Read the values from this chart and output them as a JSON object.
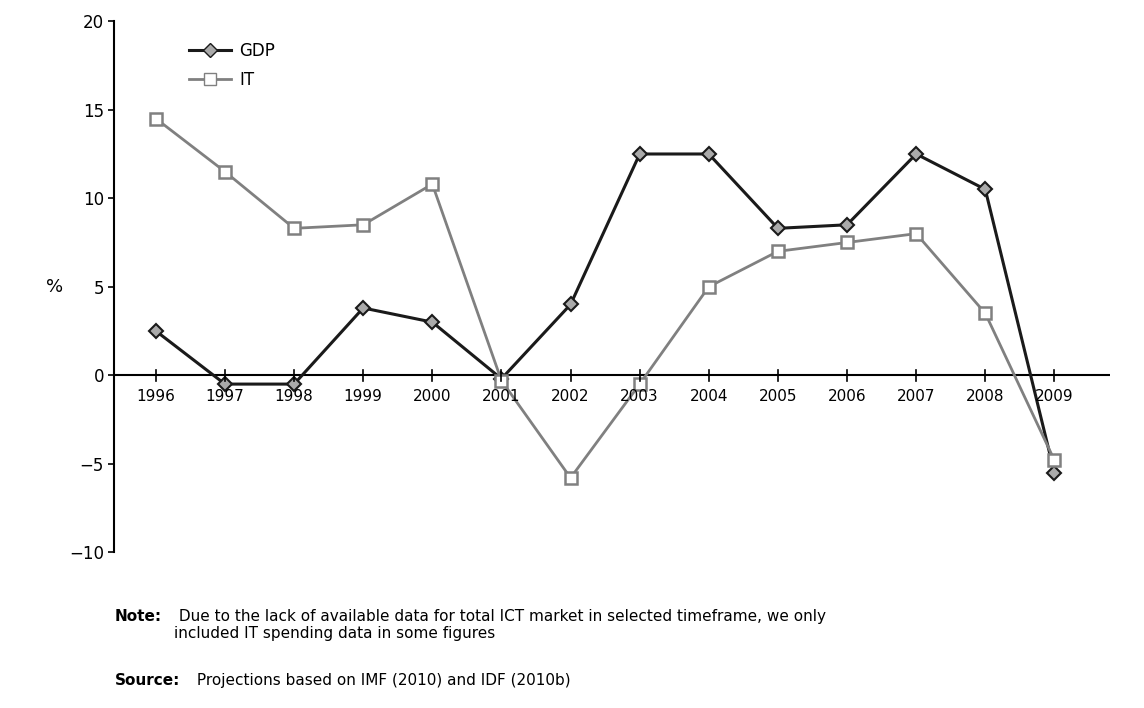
{
  "years": [
    1996,
    1997,
    1998,
    1999,
    2000,
    2001,
    2002,
    2003,
    2004,
    2005,
    2006,
    2007,
    2008,
    2009
  ],
  "gdp": [
    2.5,
    -0.5,
    -0.5,
    3.8,
    3.0,
    -0.2,
    4.0,
    12.5,
    12.5,
    8.3,
    8.5,
    12.5,
    10.5,
    -5.5
  ],
  "it": [
    14.5,
    11.5,
    8.3,
    8.5,
    10.8,
    -0.3,
    -5.8,
    -0.5,
    5.0,
    7.0,
    7.5,
    8.0,
    3.5,
    -4.8
  ],
  "gdp_color": "#1a1a1a",
  "it_color": "#808080",
  "background_color": "#ffffff",
  "ylabel": "%",
  "ylim": [
    -10,
    20
  ],
  "yticks": [
    -10,
    -5,
    0,
    5,
    10,
    15,
    20
  ],
  "xlim_left": 1995.4,
  "xlim_right": 2009.8,
  "legend_gdp": "GDP",
  "legend_it": "IT",
  "note_bold": "Note:",
  "note_rest": " Due to the lack of available data for total ICT market in selected timeframe, we only\nincluded IT spending data in some figures",
  "source_bold": "Source:",
  "source_rest": " Projections based on IMF (2010) and IDF (2010b)"
}
